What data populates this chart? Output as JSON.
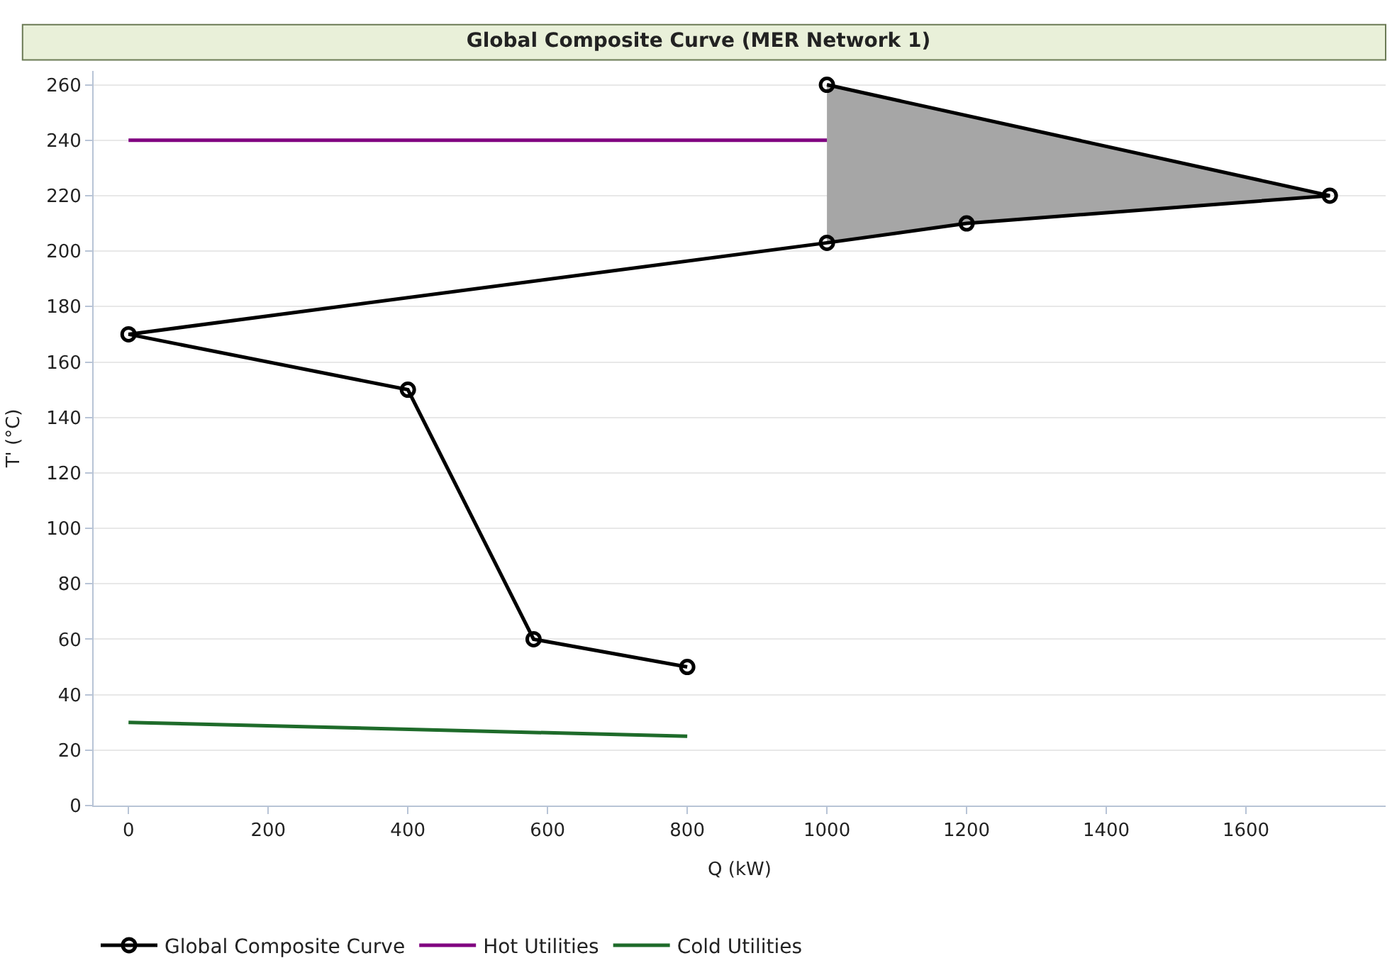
{
  "chart_data": {
    "type": "line",
    "title": "Global Composite Curve (MER Network 1)",
    "xlabel": "Q (kW)",
    "ylabel": "T' (°C)",
    "series": [
      {
        "type": "area",
        "color": "#a6a6a6",
        "x": [
          1000,
          1200,
          1720,
          1000
        ],
        "values": [
          203,
          210,
          220,
          260
        ]
      },
      {
        "name": "Global Composite Curve",
        "color": "#000000",
        "marker": "circle",
        "x": [
          800,
          580,
          400,
          0,
          1000,
          1200,
          1720,
          1000
        ],
        "values": [
          50,
          60,
          150,
          170,
          203,
          210,
          220,
          260
        ]
      },
      {
        "name": "Hot Utilities",
        "color": "#800080",
        "x": [
          0,
          1000
        ],
        "values": [
          240,
          240
        ]
      },
      {
        "name": "Cold Utilities",
        "color": "#1e6b2a",
        "x": [
          0,
          800
        ],
        "values": [
          30,
          25
        ]
      }
    ],
    "xlim": [
      -50,
      1800
    ],
    "xticks": [
      0,
      200,
      400,
      600,
      800,
      1000,
      1200,
      1400,
      1600
    ],
    "ylim": [
      0,
      265
    ],
    "yticks": [
      0,
      20,
      40,
      60,
      80,
      100,
      120,
      140,
      160,
      180,
      200,
      220,
      240,
      260
    ],
    "grid": "y",
    "legend": "bottom left"
  }
}
